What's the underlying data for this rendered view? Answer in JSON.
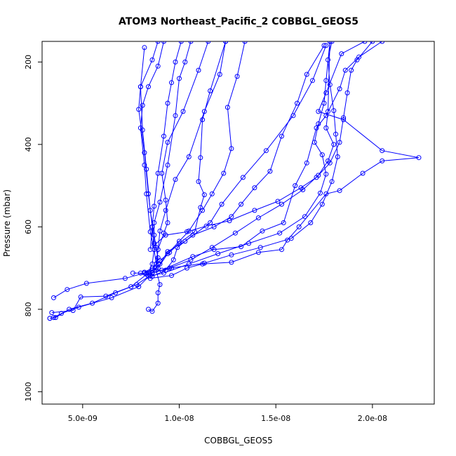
{
  "chart_data": {
    "type": "line",
    "title": "ATOM3 Northeast_Pacific_2 COBBGL_GEOS5",
    "xlabel": "COBBGL_GEOS5",
    "ylabel": "Pressure (mbar)",
    "xlim": [
      2.9e-09,
      2.32e-08
    ],
    "ylim": [
      1030,
      150
    ],
    "y_reversed": true,
    "grid": false,
    "x_ticks": [
      {
        "value": 5e-09,
        "label": "5.0e-09"
      },
      {
        "value": 1e-08,
        "label": "1.0e-08"
      },
      {
        "value": 1.5e-08,
        "label": "1.5e-08"
      },
      {
        "value": 2e-08,
        "label": "2.0e-08"
      }
    ],
    "y_ticks": [
      {
        "value": 200,
        "label": "200"
      },
      {
        "value": 400,
        "label": "400"
      },
      {
        "value": 600,
        "label": "600"
      },
      {
        "value": 800,
        "label": "800"
      },
      {
        "value": 1000,
        "label": "1000"
      }
    ],
    "color": "#0000ff",
    "series": [
      {
        "values": [
          [
            3.3e-09,
            822
          ],
          [
            3.6e-09,
            820
          ],
          [
            4.3e-09,
            800
          ],
          [
            5.5e-09,
            785
          ],
          [
            6.7e-09,
            760
          ],
          [
            7.8e-09,
            740
          ],
          [
            8.5e-09,
            718
          ],
          [
            8.8e-09,
            700
          ],
          [
            8.9e-09,
            675
          ],
          [
            8.8e-09,
            650
          ],
          [
            8.7e-09,
            620
          ],
          [
            8.5e-09,
            560
          ],
          [
            8.3e-09,
            460
          ],
          [
            8.1e-09,
            365
          ],
          [
            8e-09,
            260
          ],
          [
            8.2e-09,
            165
          ]
        ]
      },
      {
        "values": [
          [
            3.4e-09,
            808
          ],
          [
            4.5e-09,
            803
          ],
          [
            4.9e-09,
            770
          ],
          [
            6.2e-09,
            768
          ],
          [
            7.5e-09,
            745
          ],
          [
            8.4e-09,
            712
          ],
          [
            8.6e-09,
            690
          ],
          [
            8.7e-09,
            655
          ],
          [
            8.6e-09,
            600
          ],
          [
            8.4e-09,
            520
          ],
          [
            8.2e-09,
            420
          ],
          [
            7.9e-09,
            315
          ],
          [
            8e-09,
            260
          ],
          [
            8.6e-09,
            195
          ],
          [
            8.9e-09,
            150
          ]
        ]
      },
      {
        "values": [
          [
            3.5e-09,
            772
          ],
          [
            4.2e-09,
            752
          ],
          [
            5.2e-09,
            737
          ],
          [
            7.2e-09,
            725
          ],
          [
            8.2e-09,
            712
          ],
          [
            8.6e-09,
            705
          ],
          [
            8.8e-09,
            690
          ],
          [
            8.7e-09,
            655
          ],
          [
            8.5e-09,
            612
          ],
          [
            8.3e-09,
            520
          ],
          [
            8.2e-09,
            450
          ],
          [
            8e-09,
            360
          ],
          [
            8.1e-09,
            305
          ],
          [
            8.4e-09,
            260
          ],
          [
            8.9e-09,
            210
          ],
          [
            9.2e-09,
            150
          ]
        ]
      },
      {
        "values": [
          [
            3.3e-09,
            822
          ],
          [
            3.5e-09,
            820
          ],
          [
            3.9e-09,
            810
          ],
          [
            4.8e-09,
            795
          ],
          [
            6.5e-09,
            772
          ],
          [
            7.9e-09,
            745
          ],
          [
            8.6e-09,
            712
          ],
          [
            9e-09,
            690
          ],
          [
            9.4e-09,
            660
          ],
          [
            1.03e-08,
            635
          ],
          [
            1.16e-08,
            590
          ],
          [
            1.22e-08,
            545
          ],
          [
            1.33e-08,
            480
          ],
          [
            1.45e-08,
            415
          ],
          [
            1.59e-08,
            330
          ],
          [
            1.69e-08,
            245
          ],
          [
            1.76e-08,
            160
          ]
        ]
      },
      {
        "values": [
          [
            7.6e-09,
            712
          ],
          [
            8e-09,
            712
          ],
          [
            8.6e-09,
            711
          ],
          [
            9.5e-09,
            700
          ],
          [
            1.06e-08,
            680
          ],
          [
            1.17e-08,
            650
          ],
          [
            1.29e-08,
            615
          ],
          [
            1.41e-08,
            578
          ],
          [
            1.53e-08,
            545
          ],
          [
            1.64e-08,
            510
          ],
          [
            1.72e-08,
            475
          ],
          [
            1.77e-08,
            440
          ],
          [
            1.8e-08,
            400
          ],
          [
            1.76e-08,
            360
          ],
          [
            1.77e-08,
            320
          ],
          [
            1.78e-08,
            150
          ]
        ]
      },
      {
        "values": [
          [
            8.3e-09,
            715
          ],
          [
            9.6e-09,
            700
          ],
          [
            1.13e-08,
            688
          ],
          [
            1.27e-08,
            668
          ],
          [
            1.42e-08,
            650
          ],
          [
            1.58e-08,
            628
          ],
          [
            1.68e-08,
            590
          ],
          [
            1.74e-08,
            545
          ],
          [
            1.79e-08,
            490
          ],
          [
            1.82e-08,
            430
          ],
          [
            1.81e-08,
            375
          ],
          [
            1.8e-08,
            318
          ],
          [
            1.78e-08,
            255
          ],
          [
            1.77e-08,
            195
          ],
          [
            1.79e-08,
            150
          ]
        ]
      },
      {
        "values": [
          [
            8.4e-09,
            720
          ],
          [
            9.2e-09,
            712
          ],
          [
            1.05e-08,
            690
          ],
          [
            1.2e-08,
            665
          ],
          [
            1.36e-08,
            640
          ],
          [
            1.52e-08,
            615
          ],
          [
            1.65e-08,
            575
          ],
          [
            1.73e-08,
            518
          ],
          [
            1.76e-08,
            472
          ],
          [
            1.74e-08,
            425
          ],
          [
            1.7e-08,
            395
          ],
          [
            1.72e-08,
            350
          ],
          [
            1.75e-08,
            300
          ],
          [
            1.76e-08,
            245
          ],
          [
            1.78e-08,
            150
          ]
        ]
      },
      {
        "values": [
          [
            8.5e-09,
            725
          ],
          [
            9.6e-09,
            718
          ],
          [
            1.04e-08,
            700
          ],
          [
            1.12e-08,
            690
          ],
          [
            1.27e-08,
            686
          ],
          [
            1.41e-08,
            662
          ],
          [
            1.53e-08,
            655
          ],
          [
            1.56e-08,
            632
          ],
          [
            1.62e-08,
            600
          ],
          [
            1.76e-08,
            520
          ],
          [
            1.83e-08,
            512
          ],
          [
            1.95e-08,
            470
          ],
          [
            2.05e-08,
            440
          ],
          [
            2.24e-08,
            432
          ],
          [
            2.05e-08,
            415
          ],
          [
            1.85e-08,
            340
          ],
          [
            1.72e-08,
            320
          ],
          [
            1.76e-08,
            275
          ],
          [
            1.84e-08,
            180
          ],
          [
            1.96e-08,
            150
          ]
        ]
      },
      {
        "values": [
          [
            8.7e-09,
            645
          ],
          [
            9.3e-09,
            620
          ],
          [
            1.04e-08,
            612
          ],
          [
            1.14e-08,
            598
          ],
          [
            1.26e-08,
            585
          ],
          [
            1.39e-08,
            560
          ],
          [
            1.51e-08,
            538
          ],
          [
            1.63e-08,
            505
          ],
          [
            1.71e-08,
            480
          ],
          [
            1.78e-08,
            445
          ],
          [
            1.83e-08,
            395
          ],
          [
            1.85e-08,
            335
          ],
          [
            1.87e-08,
            275
          ],
          [
            1.89e-08,
            220
          ],
          [
            1.92e-08,
            195
          ],
          [
            2e-08,
            150
          ]
        ]
      },
      {
        "values": [
          [
            8.4e-09,
            800
          ],
          [
            8.6e-09,
            805
          ],
          [
            8.9e-09,
            785
          ],
          [
            8.9e-09,
            760
          ],
          [
            9e-09,
            740
          ],
          [
            8.8e-09,
            705
          ],
          [
            8.9e-09,
            655
          ],
          [
            9e-09,
            610
          ],
          [
            9.3e-09,
            560
          ],
          [
            9.8e-09,
            485
          ],
          [
            1.05e-08,
            430
          ],
          [
            1.13e-08,
            320
          ],
          [
            1.21e-08,
            230
          ],
          [
            1.24e-08,
            150
          ]
        ]
      },
      {
        "values": [
          [
            8.6e-09,
            720
          ],
          [
            9.3e-09,
            705
          ],
          [
            9.7e-09,
            680
          ],
          [
            9.9e-09,
            650
          ],
          [
            1.07e-08,
            620
          ],
          [
            1.18e-08,
            600
          ],
          [
            1.27e-08,
            575
          ],
          [
            1.32e-08,
            545
          ],
          [
            1.39e-08,
            505
          ],
          [
            1.47e-08,
            465
          ],
          [
            1.53e-08,
            380
          ],
          [
            1.61e-08,
            300
          ],
          [
            1.66e-08,
            230
          ],
          [
            1.75e-08,
            160
          ]
        ]
      },
      {
        "values": [
          [
            8.2e-09,
            710
          ],
          [
            8.6e-09,
            700
          ],
          [
            9e-09,
            682
          ],
          [
            9.5e-09,
            662
          ],
          [
            1e-08,
            640
          ],
          [
            1.08e-08,
            612
          ],
          [
            1.11e-08,
            553
          ],
          [
            1.13e-08,
            522
          ],
          [
            1.1e-08,
            490
          ],
          [
            1.11e-08,
            432
          ],
          [
            1.12e-08,
            340
          ],
          [
            1.16e-08,
            270
          ],
          [
            1.24e-08,
            150
          ]
        ]
      },
      {
        "values": [
          [
            9.1e-09,
            705
          ],
          [
            1.07e-08,
            672
          ],
          [
            1.18e-08,
            655
          ],
          [
            1.32e-08,
            648
          ],
          [
            1.43e-08,
            610
          ],
          [
            1.54e-08,
            590
          ],
          [
            1.6e-08,
            500
          ],
          [
            1.66e-08,
            445
          ],
          [
            1.71e-08,
            360
          ],
          [
            1.76e-08,
            330
          ],
          [
            1.83e-08,
            265
          ],
          [
            1.86e-08,
            220
          ],
          [
            1.93e-08,
            188
          ],
          [
            2.05e-08,
            150
          ]
        ]
      },
      {
        "values": [
          [
            8.9e-09,
            700
          ],
          [
            9.4e-09,
            665
          ],
          [
            1e-08,
            635
          ],
          [
            1.05e-08,
            610
          ],
          [
            1.12e-08,
            560
          ],
          [
            1.17e-08,
            520
          ],
          [
            1.23e-08,
            470
          ],
          [
            1.27e-08,
            410
          ],
          [
            1.25e-08,
            310
          ],
          [
            1.3e-08,
            235
          ],
          [
            1.34e-08,
            150
          ]
        ]
      },
      {
        "values": [
          [
            8.8e-09,
            690
          ],
          [
            8.9e-09,
            655
          ],
          [
            9.2e-09,
            615
          ],
          [
            9.4e-09,
            590
          ],
          [
            9.3e-09,
            535
          ],
          [
            9.1e-09,
            470
          ],
          [
            9.4e-09,
            395
          ],
          [
            1.02e-08,
            320
          ],
          [
            1.1e-08,
            220
          ],
          [
            1.15e-08,
            150
          ]
        ]
      },
      {
        "values": [
          [
            8.7e-09,
            640
          ],
          [
            8.7e-09,
            590
          ],
          [
            9e-09,
            540
          ],
          [
            9.4e-09,
            450
          ],
          [
            9.8e-09,
            330
          ],
          [
            1e-08,
            240
          ],
          [
            1.03e-08,
            200
          ],
          [
            1.06e-08,
            150
          ]
        ]
      },
      {
        "values": [
          [
            8.5e-09,
            655
          ],
          [
            8.6e-09,
            600
          ],
          [
            8.7e-09,
            550
          ],
          [
            8.9e-09,
            470
          ],
          [
            9.2e-09,
            380
          ],
          [
            9.4e-09,
            300
          ],
          [
            9.6e-09,
            250
          ],
          [
            9.8e-09,
            200
          ],
          [
            1.01e-08,
            150
          ]
        ]
      }
    ]
  }
}
